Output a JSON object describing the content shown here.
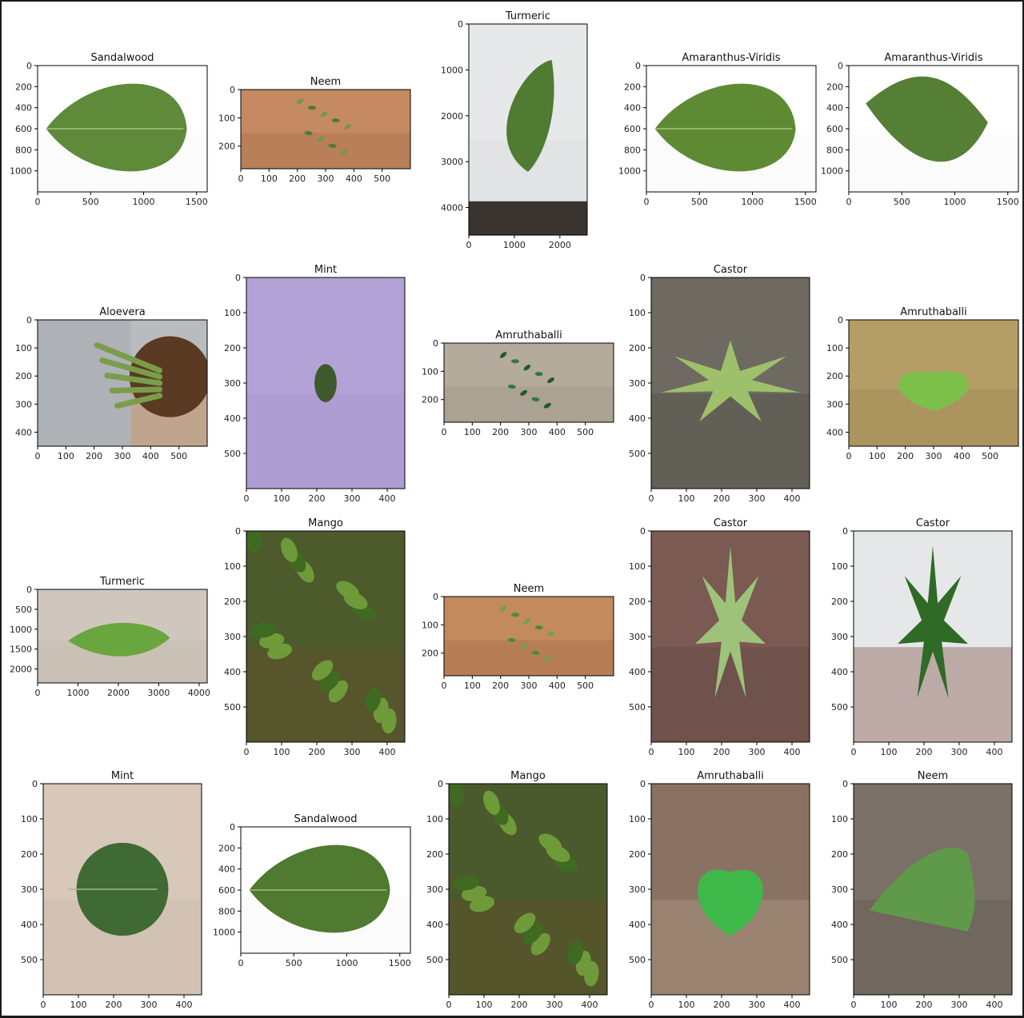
{
  "chart_data": [
    {
      "type": "image",
      "title": "Sandalwood",
      "subject": "leaf on white",
      "xticks": [
        "0",
        "500",
        "1000",
        "1500"
      ],
      "yticks": [
        "0",
        "200",
        "400",
        "600",
        "800",
        "1000"
      ],
      "xlim": [
        0,
        1600
      ],
      "ylim": [
        1200,
        0
      ],
      "palette": {
        "bg": "#ffffff",
        "mid": "#f4f4f4",
        "obj": "#5e8a3a",
        "obj2": "#4b7530"
      },
      "shape": "leaf-wide"
    },
    {
      "type": "image",
      "title": "Neem",
      "subject": "sprig on soil",
      "xticks": [
        "0",
        "100",
        "200",
        "300",
        "400",
        "500"
      ],
      "yticks": [
        "0",
        "100",
        "200"
      ],
      "xlim": [
        0,
        600
      ],
      "ylim": [
        280,
        0
      ],
      "palette": {
        "bg": "#c58a62",
        "mid": "#a26a48",
        "obj": "#4f7a3a",
        "obj2": "#6f9a4a"
      },
      "shape": "sprig"
    },
    {
      "type": "image",
      "title": "Turmeric",
      "subject": "leaf on white wall",
      "xticks": [
        "0",
        "1000",
        "2000"
      ],
      "yticks": [
        "0",
        "1000",
        "2000",
        "3000",
        "4000"
      ],
      "xlim": [
        0,
        2600
      ],
      "ylim": [
        4600,
        0
      ],
      "palette": {
        "bg": "#e7e8ea",
        "mid": "#d9dadc",
        "obj": "#4f7b33",
        "obj2": "#3e6826"
      },
      "shape": "leaf-tall"
    },
    {
      "type": "image",
      "title": "Amaranthus-Viridis",
      "subject": "leaf on white",
      "xticks": [
        "0",
        "500",
        "1000",
        "1500"
      ],
      "yticks": [
        "0",
        "200",
        "400",
        "600",
        "800",
        "1000"
      ],
      "xlim": [
        0,
        1600
      ],
      "ylim": [
        1200,
        0
      ],
      "palette": {
        "bg": "#ffffff",
        "mid": "#f4f4f4",
        "obj": "#5f8a34",
        "obj2": "#4d7527"
      },
      "shape": "leaf-wide"
    },
    {
      "type": "image",
      "title": "Amaranthus-Viridis",
      "subject": "leaf on white",
      "xticks": [
        "0",
        "500",
        "1000",
        "1500"
      ],
      "yticks": [
        "0",
        "200",
        "400",
        "600",
        "800",
        "1000"
      ],
      "xlim": [
        0,
        1600
      ],
      "ylim": [
        1200,
        0
      ],
      "palette": {
        "bg": "#ffffff",
        "mid": "#f4f4f4",
        "obj": "#557f34",
        "obj2": "#456d29"
      },
      "shape": "leaf-diamond"
    },
    {
      "type": "image",
      "title": "Aloevera",
      "subject": "potted aloe held",
      "xticks": [
        "0",
        "100",
        "200",
        "300",
        "400",
        "500"
      ],
      "yticks": [
        "0",
        "100",
        "200",
        "300",
        "400"
      ],
      "xlim": [
        0,
        600
      ],
      "ylim": [
        450,
        0
      ],
      "palette": {
        "bg": "#b9bcbf",
        "mid": "#cf7a33",
        "obj": "#7a9d4a",
        "obj2": "#5a3a22"
      },
      "shape": "aloe"
    },
    {
      "type": "image",
      "title": "Mint",
      "subject": "leaf on purple paper",
      "xticks": [
        "0",
        "100",
        "200",
        "300",
        "400"
      ],
      "yticks": [
        "0",
        "100",
        "200",
        "300",
        "400",
        "500"
      ],
      "xlim": [
        0,
        450
      ],
      "ylim": [
        600,
        0
      ],
      "palette": {
        "bg": "#b2a2d6",
        "mid": "#a595cc",
        "obj": "#3e5a2c",
        "obj2": "#2f4a22"
      },
      "shape": "small-leaf"
    },
    {
      "type": "image",
      "title": "Amruthaballi",
      "subject": "plant on ground",
      "xticks": [
        "0",
        "100",
        "200",
        "300",
        "400",
        "500"
      ],
      "yticks": [
        "0",
        "100",
        "200"
      ],
      "xlim": [
        0,
        600
      ],
      "ylim": [
        280,
        0
      ],
      "palette": {
        "bg": "#b4ab9c",
        "mid": "#9c9384",
        "obj": "#2f7a3a",
        "obj2": "#1f5a2a"
      },
      "shape": "sprig"
    },
    {
      "type": "image",
      "title": "Castor",
      "subject": "leaf on granite",
      "xticks": [
        "0",
        "100",
        "200",
        "300",
        "400"
      ],
      "yticks": [
        "0",
        "100",
        "200",
        "300",
        "400",
        "500"
      ],
      "xlim": [
        0,
        450
      ],
      "ylim": [
        600,
        0
      ],
      "palette": {
        "bg": "#6e6a62",
        "mid": "#4e4a44",
        "obj": "#9ec06a",
        "obj2": "#7ea24e"
      },
      "shape": "palmate"
    },
    {
      "type": "image",
      "title": "Amruthaballi",
      "subject": "plant on paving",
      "xticks": [
        "0",
        "100",
        "200",
        "300",
        "400",
        "500"
      ],
      "yticks": [
        "0",
        "100",
        "200",
        "300",
        "400"
      ],
      "xlim": [
        0,
        600
      ],
      "ylim": [
        450,
        0
      ],
      "palette": {
        "bg": "#b59d66",
        "mid": "#9a8453",
        "obj": "#7cc04a",
        "obj2": "#4a3a22"
      },
      "shape": "heart"
    },
    {
      "type": "image",
      "title": "Turmeric",
      "subject": "leaf on stone",
      "xticks": [
        "0",
        "1000",
        "2000",
        "3000",
        "4000"
      ],
      "yticks": [
        "0",
        "500",
        "1000",
        "1500",
        "2000"
      ],
      "xlim": [
        0,
        4200
      ],
      "ylim": [
        2350,
        0
      ],
      "palette": {
        "bg": "#cfc7bd",
        "mid": "#bdb4a9",
        "obj": "#6aa63e",
        "obj2": "#4f8c2e"
      },
      "shape": "leaf-flat"
    },
    {
      "type": "image",
      "title": "Mango",
      "subject": "mango foliage",
      "xticks": [
        "0",
        "100",
        "200",
        "300",
        "400"
      ],
      "yticks": [
        "0",
        "100",
        "200",
        "300",
        "400",
        "500"
      ],
      "xlim": [
        0,
        450
      ],
      "ylim": [
        600,
        0
      ],
      "palette": {
        "bg": "#4c5a2c",
        "mid": "#6b4c2a",
        "obj": "#6f9a3a",
        "obj2": "#3f6a22"
      },
      "shape": "foliage"
    },
    {
      "type": "image",
      "title": "Neem",
      "subject": "sprig on soil",
      "xticks": [
        "0",
        "100",
        "200",
        "300",
        "400",
        "500"
      ],
      "yticks": [
        "0",
        "100",
        "200"
      ],
      "xlim": [
        0,
        600
      ],
      "ylim": [
        280,
        0
      ],
      "palette": {
        "bg": "#c38a5e",
        "mid": "#a06846",
        "obj": "#4f8a3a",
        "obj2": "#6fa24a"
      },
      "shape": "sprig"
    },
    {
      "type": "image",
      "title": "Castor",
      "subject": "leaf on granite",
      "xticks": [
        "0",
        "100",
        "200",
        "300",
        "400"
      ],
      "yticks": [
        "0",
        "100",
        "200",
        "300",
        "400",
        "500"
      ],
      "xlim": [
        0,
        450
      ],
      "ylim": [
        600,
        0
      ],
      "palette": {
        "bg": "#7a5a52",
        "mid": "#5c443e",
        "obj": "#9fc27a",
        "obj2": "#7fa65a"
      },
      "shape": "palmate-tall"
    },
    {
      "type": "image",
      "title": "Castor",
      "subject": "leaf on white",
      "xticks": [
        "0",
        "100",
        "200",
        "300",
        "400"
      ],
      "yticks": [
        "0",
        "100",
        "200",
        "300",
        "400",
        "500"
      ],
      "xlim": [
        0,
        450
      ],
      "ylim": [
        600,
        0
      ],
      "palette": {
        "bg": "#e6e7e9",
        "mid": "#6e3a2e",
        "obj": "#2f6a26",
        "obj2": "#245a1e"
      },
      "shape": "palmate-tall"
    },
    {
      "type": "image",
      "title": "Mint",
      "subject": "leaf on beige",
      "xticks": [
        "0",
        "100",
        "200",
        "300",
        "400"
      ],
      "yticks": [
        "0",
        "100",
        "200",
        "300",
        "400",
        "500"
      ],
      "xlim": [
        0,
        450
      ],
      "ylim": [
        600,
        0
      ],
      "palette": {
        "bg": "#d7c8ba",
        "mid": "#c8b8a8",
        "obj": "#3f6a34",
        "obj2": "#2f5a28"
      },
      "shape": "round"
    },
    {
      "type": "image",
      "title": "Sandalwood",
      "subject": "leaf on white",
      "xticks": [
        "0",
        "500",
        "1000",
        "1500"
      ],
      "yticks": [
        "0",
        "200",
        "400",
        "600",
        "800",
        "1000"
      ],
      "xlim": [
        0,
        1600
      ],
      "ylim": [
        1200,
        0
      ],
      "palette": {
        "bg": "#ffffff",
        "mid": "#f4f4f4",
        "obj": "#4f7a2f",
        "obj2": "#3f6a24"
      },
      "shape": "leaf-wide"
    },
    {
      "type": "image",
      "title": "Mango",
      "subject": "mango foliage",
      "xticks": [
        "0",
        "100",
        "200",
        "300",
        "400"
      ],
      "yticks": [
        "0",
        "100",
        "200",
        "300",
        "400",
        "500"
      ],
      "xlim": [
        0,
        450
      ],
      "ylim": [
        600,
        0
      ],
      "palette": {
        "bg": "#4a5a2c",
        "mid": "#6b4c2a",
        "obj": "#6f9a3a",
        "obj2": "#3f6a22"
      },
      "shape": "foliage"
    },
    {
      "type": "image",
      "title": "Amruthaballi",
      "subject": "leaf on dry leaves",
      "xticks": [
        "0",
        "100",
        "200",
        "300",
        "400"
      ],
      "yticks": [
        "0",
        "100",
        "200",
        "300",
        "400",
        "500"
      ],
      "xlim": [
        0,
        450
      ],
      "ylim": [
        600,
        0
      ],
      "palette": {
        "bg": "#8a7262",
        "mid": "#b8a08e",
        "obj": "#3fb84a",
        "obj2": "#2f9a3a"
      },
      "shape": "heart"
    },
    {
      "type": "image",
      "title": "Neem",
      "subject": "leaf on gravel",
      "xticks": [
        "0",
        "100",
        "200",
        "300",
        "400"
      ],
      "yticks": [
        "0",
        "100",
        "200",
        "300",
        "400",
        "500"
      ],
      "xlim": [
        0,
        450
      ],
      "ylim": [
        600,
        0
      ],
      "palette": {
        "bg": "#7a7068",
        "mid": "#5e564e",
        "obj": "#5f9a4a",
        "obj2": "#4a8a3a"
      },
      "shape": "leaf-curve"
    }
  ]
}
